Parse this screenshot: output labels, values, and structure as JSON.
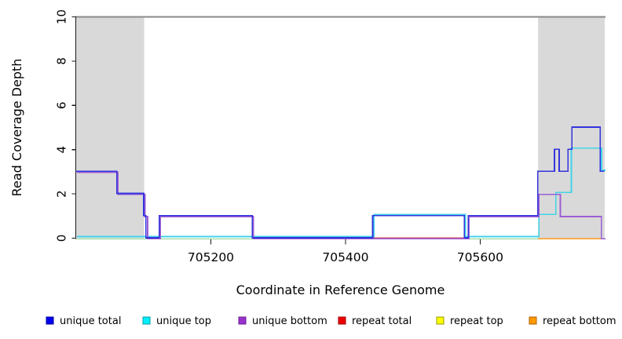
{
  "chart_data": {
    "type": "line",
    "subtype": "step",
    "title": "",
    "xlabel": "Coordinate in Reference Genome",
    "ylabel": "Read Coverage Depth",
    "xlim": [
      705000,
      705785
    ],
    "ylim": [
      0,
      10
    ],
    "xticks": [
      "705200",
      "705400",
      "705600"
    ],
    "xtick_values": [
      705200,
      705400,
      705600
    ],
    "yticks": [
      "0",
      "2",
      "4",
      "6",
      "8",
      "10"
    ],
    "ytick_values": [
      0,
      2,
      4,
      6,
      8,
      10
    ],
    "grid": false,
    "legend_position": "bottom",
    "background_color": "#ffffff",
    "shaded_regions": [
      {
        "x0": 705000,
        "x1": 705101,
        "color": "#d9d9d9"
      },
      {
        "x0": 705686,
        "x1": 705785,
        "color": "#d9d9d9"
      }
    ],
    "top_boundary": {
      "y": 10,
      "color": "#8a8a8a"
    },
    "zero_baseline": {
      "x0": 705000,
      "x1": 705686,
      "y": 0,
      "color": "#8fd492"
    },
    "series": [
      {
        "name": "unique total",
        "line_color": "#3434dd",
        "legend_color": "#0000ee",
        "legend_border": "#0000a0",
        "steps": [
          [
            705000,
            3
          ],
          [
            705061,
            2
          ],
          [
            705101,
            1
          ],
          [
            705104,
            0
          ],
          [
            705124,
            1
          ],
          [
            705262,
            0
          ],
          [
            705441,
            1
          ],
          [
            705577,
            0
          ],
          [
            705583,
            1
          ],
          [
            705686,
            3
          ],
          [
            705711,
            4
          ],
          [
            705718,
            3
          ],
          [
            705731,
            4
          ],
          [
            705737,
            5
          ],
          [
            705779,
            3
          ]
        ],
        "x_end": 705785
      },
      {
        "name": "unique top",
        "line_color": "#42d3e8",
        "legend_color": "#00eeff",
        "legend_border": "#00a0a0",
        "steps": [
          [
            705000,
            0
          ],
          [
            705441,
            1
          ],
          [
            705577,
            0
          ],
          [
            705686,
            1
          ],
          [
            705711,
            2
          ],
          [
            705734,
            4
          ],
          [
            705779,
            3
          ]
        ],
        "x_end": 705785
      },
      {
        "name": "unique bottom",
        "line_color": "#9c5ed4",
        "legend_color": "#9932cc",
        "legend_border": "#6a1f96",
        "steps": [
          [
            705000,
            3
          ],
          [
            705061,
            2
          ],
          [
            705101,
            1
          ],
          [
            705105,
            0
          ],
          [
            705124,
            1
          ],
          [
            705262,
            0
          ],
          [
            705582,
            1
          ],
          [
            705686,
            2
          ],
          [
            705718,
            1
          ],
          [
            705779,
            0
          ]
        ],
        "x_end": 705785
      },
      {
        "name": "repeat total",
        "line_color": "#e0486a",
        "legend_color": "#ee0000",
        "legend_border": "#a00000",
        "steps": [
          [
            705441,
            0
          ]
        ],
        "x_end": 705577
      },
      {
        "name": "repeat top",
        "line_color": "#f5e642",
        "legend_color": "#ffff00",
        "legend_border": "#9a9a00",
        "steps": [],
        "x_end": null
      },
      {
        "name": "repeat bottom",
        "line_color": "#ff9d1c",
        "legend_color": "#ff9900",
        "legend_border": "#b06000",
        "steps": [
          [
            705686,
            0
          ]
        ],
        "x_end": 705785
      }
    ]
  }
}
